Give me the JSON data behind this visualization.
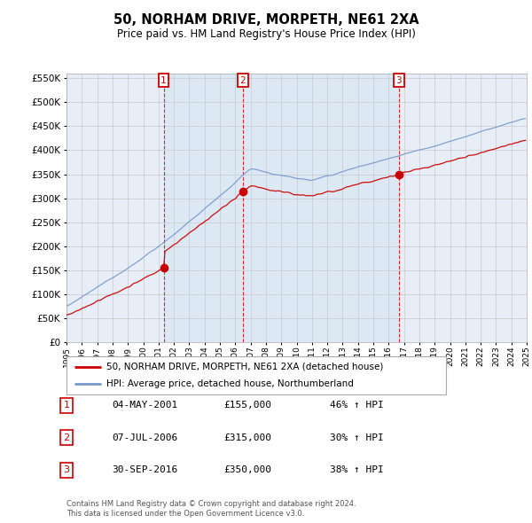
{
  "title": "50, NORHAM DRIVE, MORPETH, NE61 2XA",
  "subtitle": "Price paid vs. HM Land Registry's House Price Index (HPI)",
  "legend_label_red": "50, NORHAM DRIVE, MORPETH, NE61 2XA (detached house)",
  "legend_label_blue": "HPI: Average price, detached house, Northumberland",
  "footer_line1": "Contains HM Land Registry data © Crown copyright and database right 2024.",
  "footer_line2": "This data is licensed under the Open Government Licence v3.0.",
  "transactions": [
    {
      "num": 1,
      "date": "04-MAY-2001",
      "price": 155000,
      "hpi_change": "46% ↑ HPI"
    },
    {
      "num": 2,
      "date": "07-JUL-2006",
      "price": 315000,
      "hpi_change": "30% ↑ HPI"
    },
    {
      "num": 3,
      "date": "30-SEP-2016",
      "price": 350000,
      "hpi_change": "38% ↑ HPI"
    }
  ],
  "ylim": [
    0,
    560000
  ],
  "yticks": [
    0,
    50000,
    100000,
    150000,
    200000,
    250000,
    300000,
    350000,
    400000,
    450000,
    500000,
    550000
  ],
  "background_color": "#ffffff",
  "plot_bg_color": "#e8eef8",
  "grid_color": "#c8c8c8",
  "red_color": "#cc0000",
  "blue_color": "#7799cc",
  "shade_color": "#dde8f5"
}
